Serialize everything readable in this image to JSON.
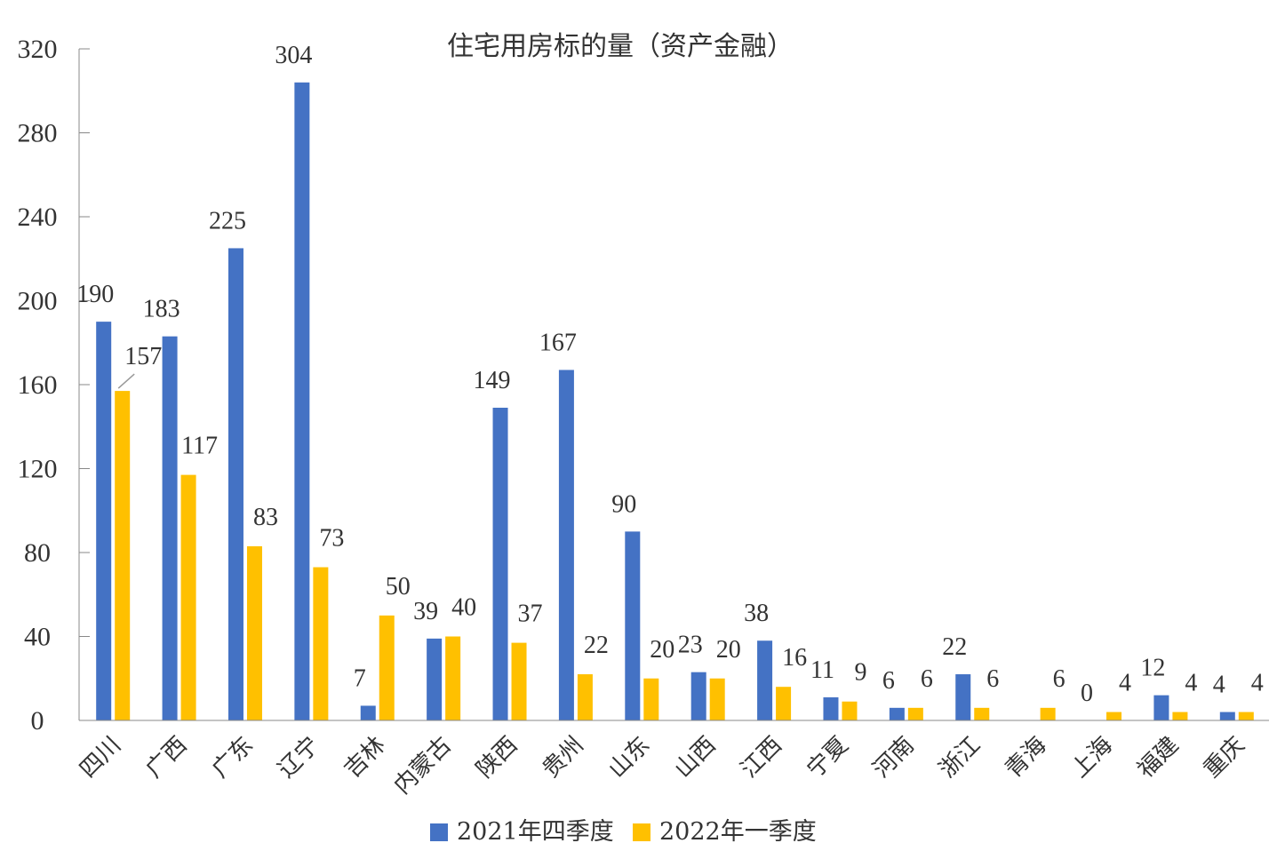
{
  "chart_data": {
    "type": "bar",
    "title": "住宅用房标的量（资产金融）",
    "categories": [
      "四川",
      "广西",
      "广东",
      "辽宁",
      "吉林",
      "内蒙古",
      "陕西",
      "贵州",
      "山东",
      "山西",
      "江西",
      "宁夏",
      "河南",
      "浙江",
      "青海",
      "上海",
      "福建",
      "重庆"
    ],
    "series": [
      {
        "name": "2021年四季度",
        "color": "#4472C4",
        "values": [
          190,
          183,
          225,
          304,
          7,
          39,
          149,
          167,
          90,
          23,
          38,
          11,
          6,
          22,
          null,
          0,
          12,
          4
        ]
      },
      {
        "name": "2022年一季度",
        "color": "#FFC000",
        "values": [
          157,
          117,
          83,
          73,
          50,
          40,
          37,
          22,
          20,
          20,
          16,
          9,
          6,
          6,
          6,
          4,
          4,
          4
        ]
      }
    ],
    "ylim": [
      0,
      320
    ],
    "yticks": [
      0,
      40,
      80,
      120,
      160,
      200,
      240,
      280,
      320
    ],
    "legend_position": "bottom",
    "grid": false
  }
}
